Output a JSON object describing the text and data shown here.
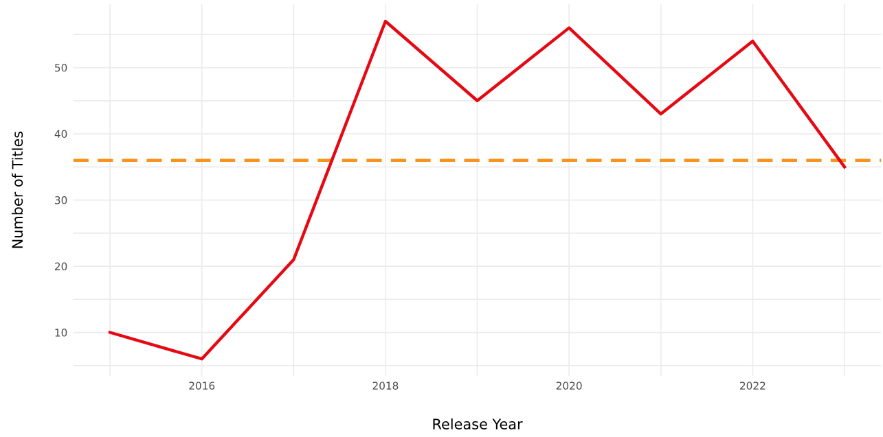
{
  "chart_data": {
    "type": "line",
    "xlabel": "Release Year",
    "ylabel": "Number of Titles",
    "x": [
      2015,
      2016,
      2017,
      2018,
      2019,
      2020,
      2021,
      2022,
      2023
    ],
    "series": [
      {
        "color": "#e50914",
        "values": [
          10,
          6,
          21,
          57,
          45,
          56,
          43,
          54,
          35
        ]
      }
    ],
    "xlim": [
      2014.6,
      2023.4
    ],
    "xticks": [
      2016,
      2018,
      2020,
      2022
    ],
    "ylim": [
      3.45,
      59.55
    ],
    "yticks": [
      10,
      20,
      30,
      40,
      50
    ],
    "ref_lines": [
      {
        "axis": "y",
        "value": 36,
        "color": "#f7931e",
        "line_style": "dashed"
      }
    ],
    "grid": true,
    "legend": false,
    "marker": "none",
    "line_style": "solid"
  }
}
